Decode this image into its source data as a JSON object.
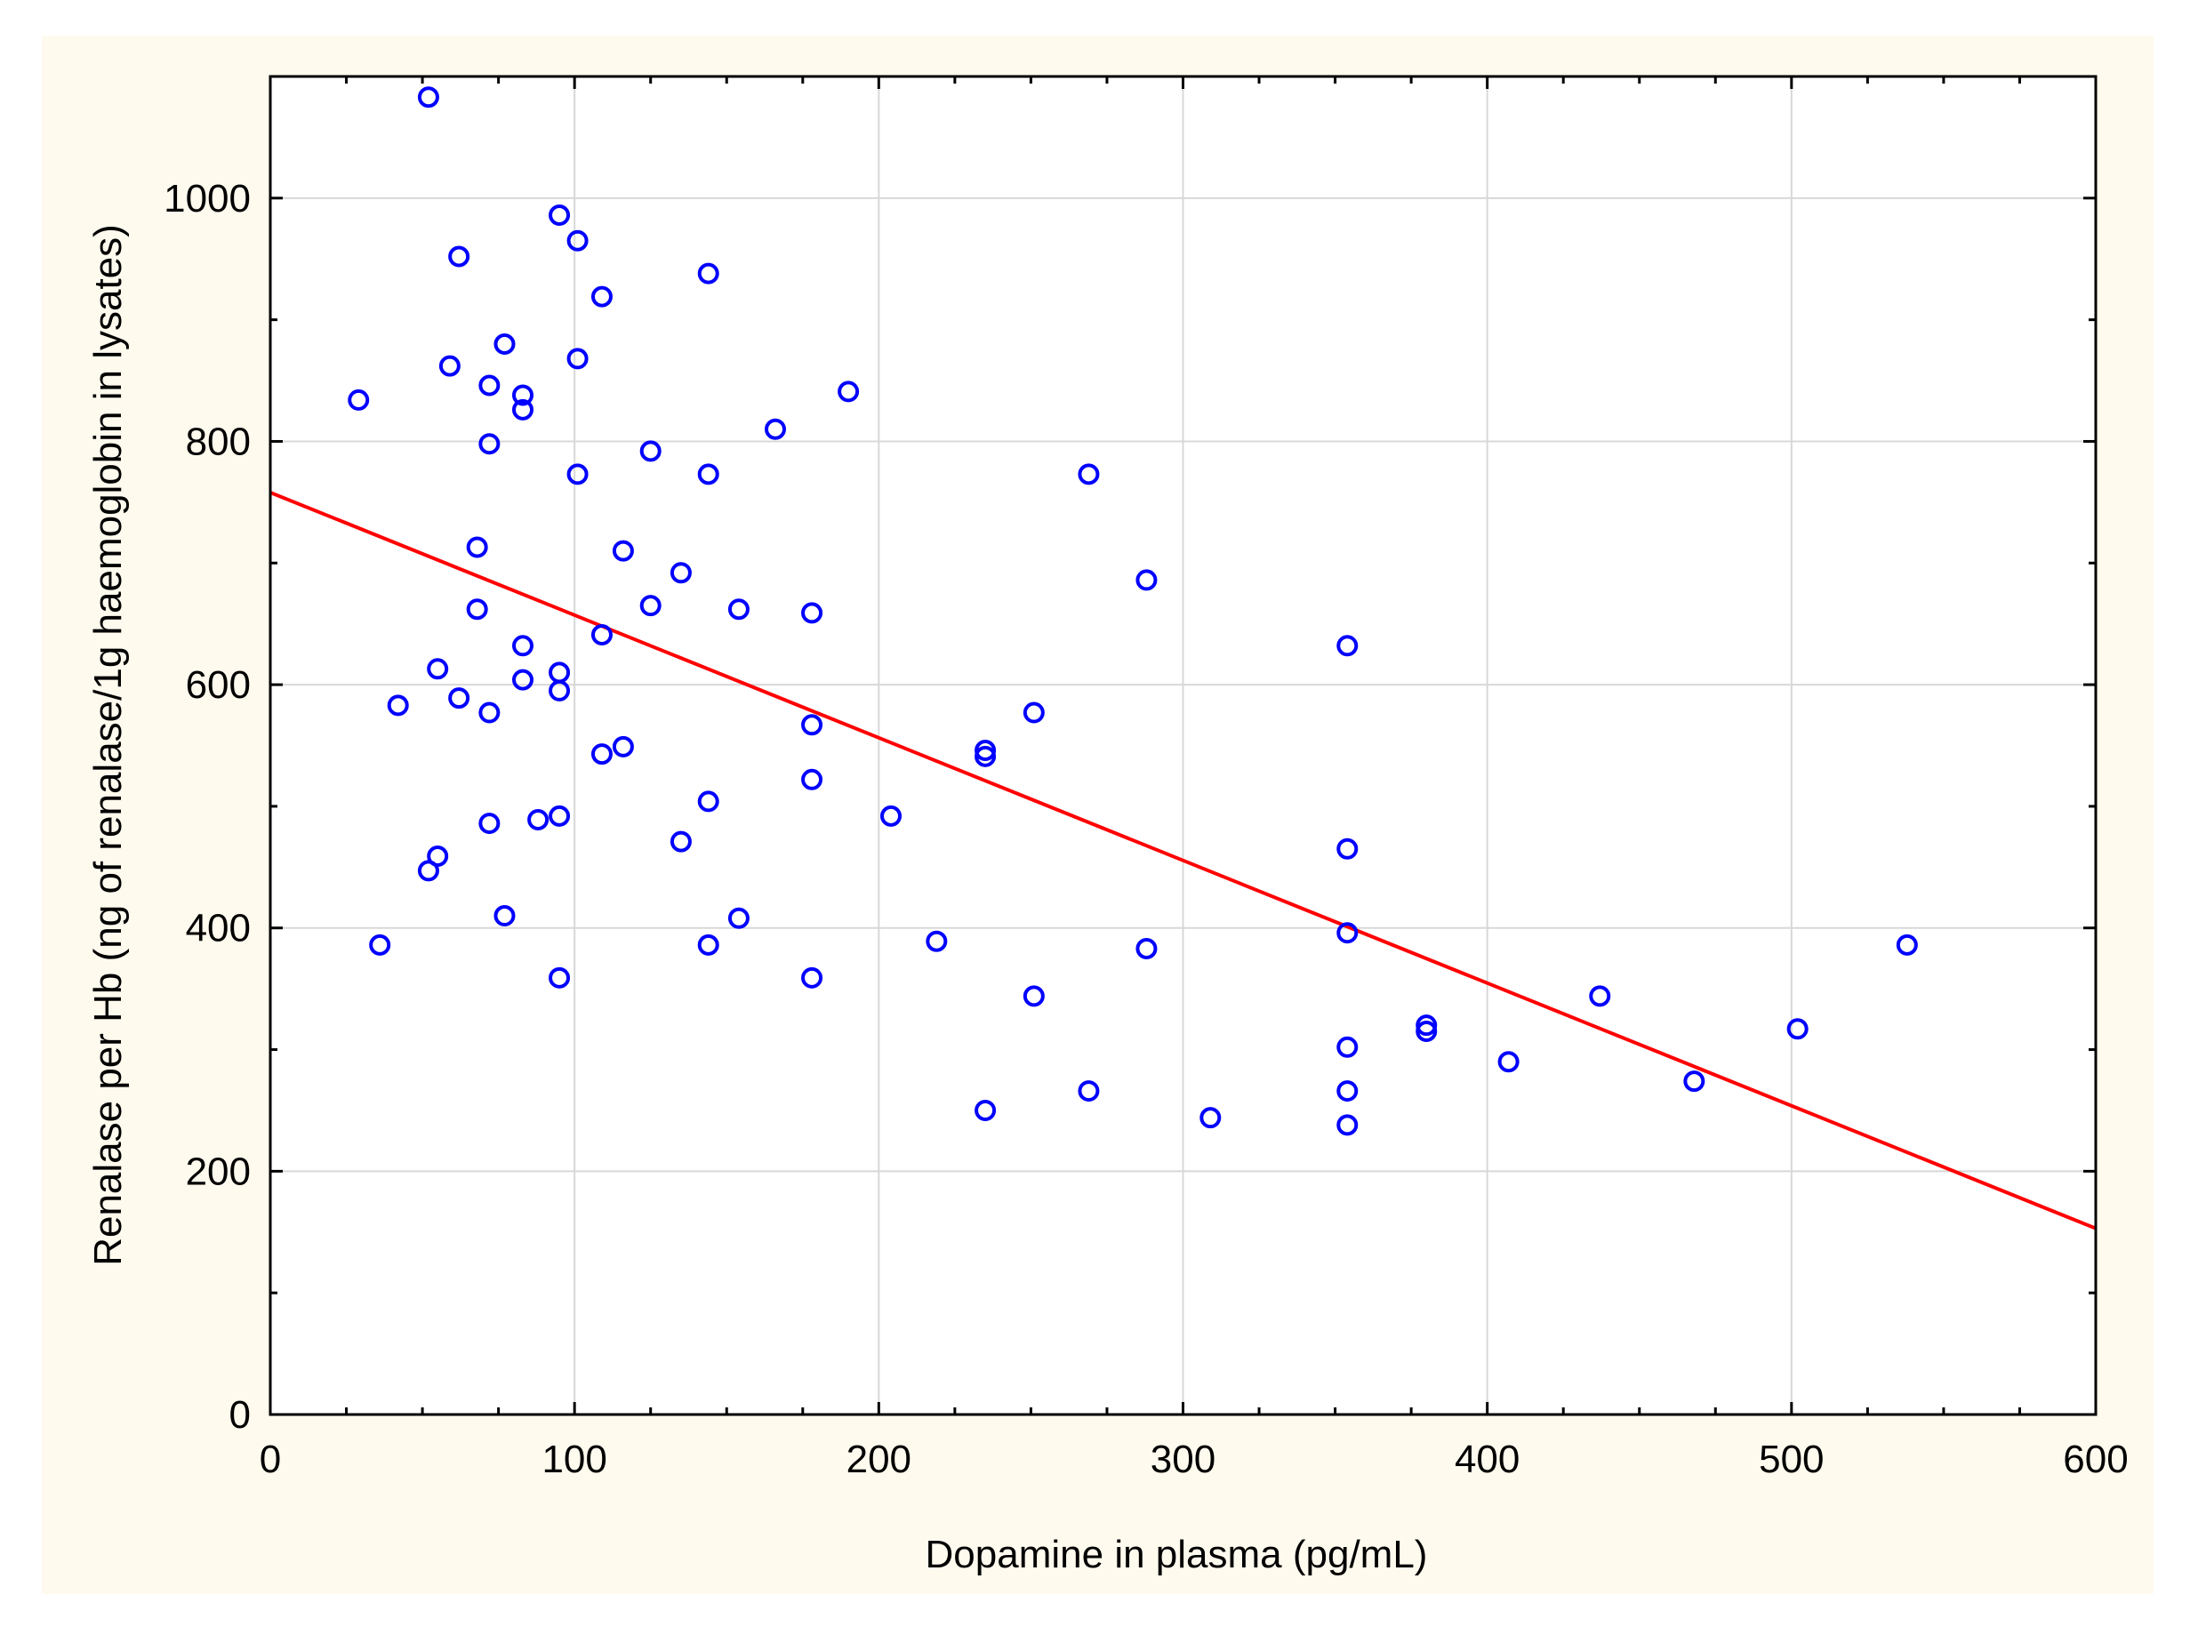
{
  "chart_data": {
    "type": "scatter",
    "title": "",
    "xlabel": "Dopamine in plasma (pg/mL)",
    "ylabel": "Renalase  per Hb (ng of renalase/1g haemoglobin in lysates)",
    "xlim": [
      0,
      600
    ],
    "ylim": [
      0,
      1100
    ],
    "x_ticks": [
      0,
      100,
      200,
      300,
      400,
      500,
      600
    ],
    "y_ticks": [
      0,
      200,
      400,
      600,
      800,
      1000
    ],
    "x_tick_labels": [
      "0",
      "100",
      "200",
      "300",
      "400",
      "500",
      "600"
    ],
    "y_tick_labels": [
      "0",
      "200",
      "400",
      "600",
      "800",
      "1000"
    ],
    "grid": true,
    "legend": "none",
    "marker_color": "#0000ff",
    "line_color": "#ff0000",
    "regression_line": {
      "x": [
        0,
        600
      ],
      "y": [
        758,
        153
      ]
    },
    "points": [
      [
        52,
        1083
      ],
      [
        29,
        834
      ],
      [
        36,
        386
      ],
      [
        42,
        583
      ],
      [
        52,
        447
      ],
      [
        55,
        613
      ],
      [
        55,
        459
      ],
      [
        59,
        862
      ],
      [
        62,
        952
      ],
      [
        62,
        589
      ],
      [
        68,
        713
      ],
      [
        68,
        662
      ],
      [
        72,
        846
      ],
      [
        72,
        798
      ],
      [
        72,
        577
      ],
      [
        72,
        486
      ],
      [
        77,
        880
      ],
      [
        77,
        410
      ],
      [
        83,
        838
      ],
      [
        83,
        826
      ],
      [
        83,
        632
      ],
      [
        83,
        604
      ],
      [
        88,
        489
      ],
      [
        95,
        986
      ],
      [
        95,
        610
      ],
      [
        95,
        595
      ],
      [
        95,
        492
      ],
      [
        95,
        359
      ],
      [
        101,
        965
      ],
      [
        101,
        868
      ],
      [
        101,
        773
      ],
      [
        109,
        919
      ],
      [
        109,
        641
      ],
      [
        109,
        543
      ],
      [
        116,
        710
      ],
      [
        116,
        549
      ],
      [
        125,
        792
      ],
      [
        125,
        665
      ],
      [
        135,
        692
      ],
      [
        135,
        471
      ],
      [
        144,
        938
      ],
      [
        144,
        773
      ],
      [
        144,
        504
      ],
      [
        144,
        386
      ],
      [
        154,
        662
      ],
      [
        154,
        408
      ],
      [
        166,
        810
      ],
      [
        178,
        659
      ],
      [
        178,
        567
      ],
      [
        178,
        522
      ],
      [
        178,
        359
      ],
      [
        190,
        841
      ],
      [
        204,
        492
      ],
      [
        219,
        389
      ],
      [
        235,
        546
      ],
      [
        235,
        541
      ],
      [
        235,
        250
      ],
      [
        251,
        577
      ],
      [
        251,
        344
      ],
      [
        269,
        773
      ],
      [
        269,
        266
      ],
      [
        288,
        686
      ],
      [
        288,
        383
      ],
      [
        309,
        244
      ],
      [
        354,
        632
      ],
      [
        354,
        465
      ],
      [
        354,
        396
      ],
      [
        354,
        302
      ],
      [
        354,
        266
      ],
      [
        354,
        238
      ],
      [
        380,
        320
      ],
      [
        380,
        315
      ],
      [
        407,
        290
      ],
      [
        437,
        344
      ],
      [
        468,
        274
      ],
      [
        502,
        317
      ],
      [
        538,
        386
      ]
    ]
  }
}
